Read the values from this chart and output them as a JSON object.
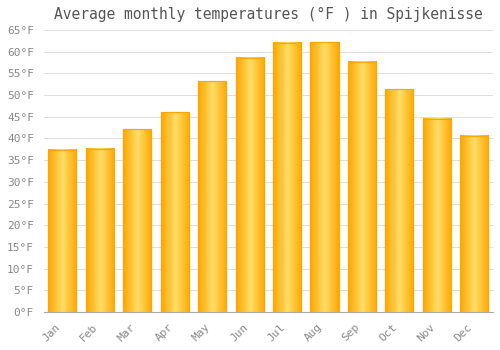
{
  "title": "Average monthly temperatures (°F ) in Spijkenisse",
  "months": [
    "Jan",
    "Feb",
    "Mar",
    "Apr",
    "May",
    "Jun",
    "Jul",
    "Aug",
    "Sep",
    "Oct",
    "Nov",
    "Dec"
  ],
  "values": [
    37.4,
    37.6,
    42.1,
    46.0,
    53.2,
    58.6,
    62.1,
    62.2,
    57.7,
    51.3,
    44.6,
    40.6
  ],
  "bar_color_light": "#FFD966",
  "bar_color_mid": "#FFBB33",
  "bar_color_dark": "#FFA500",
  "background_color": "#FFFFFF",
  "plot_bg_color": "#FFFFFF",
  "grid_color": "#DDDDDD",
  "ylim": [
    0,
    65
  ],
  "yticks": [
    0,
    5,
    10,
    15,
    20,
    25,
    30,
    35,
    40,
    45,
    50,
    55,
    60,
    65
  ],
  "ytick_labels": [
    "0°F",
    "5°F",
    "10°F",
    "15°F",
    "20°F",
    "25°F",
    "30°F",
    "35°F",
    "40°F",
    "45°F",
    "50°F",
    "55°F",
    "60°F",
    "65°F"
  ],
  "title_fontsize": 10.5,
  "tick_fontsize": 8,
  "tick_font_color": "#888888",
  "title_color": "#555555",
  "spine_color": "#AAAAAA",
  "bar_width": 0.75
}
